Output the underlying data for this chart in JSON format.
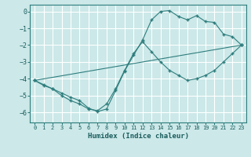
{
  "xlabel": "Humidex (Indice chaleur)",
  "background_color": "#cce8e8",
  "grid_color": "#b8d8d8",
  "line_color": "#2e7d7d",
  "xlim": [
    -0.5,
    23.5
  ],
  "ylim": [
    -6.6,
    0.4
  ],
  "xticks": [
    0,
    1,
    2,
    3,
    4,
    5,
    6,
    7,
    8,
    9,
    10,
    11,
    12,
    13,
    14,
    15,
    16,
    17,
    18,
    19,
    20,
    21,
    22,
    23
  ],
  "yticks": [
    0,
    -1,
    -2,
    -3,
    -4,
    -5,
    -6
  ],
  "line1_x": [
    0,
    1,
    2,
    3,
    4,
    5,
    6,
    7,
    8,
    9,
    10,
    11,
    12,
    13,
    14,
    15,
    16,
    17,
    18,
    19,
    20,
    21,
    22,
    23
  ],
  "line1_y": [
    -4.1,
    -4.35,
    -4.6,
    -4.85,
    -5.1,
    -5.3,
    -5.75,
    -5.95,
    -5.8,
    -4.7,
    -3.55,
    -2.6,
    -1.7,
    -0.5,
    0.0,
    0.05,
    -0.3,
    -0.5,
    -0.25,
    -0.6,
    -0.65,
    -1.35,
    -1.5,
    -2.0
  ],
  "line2_x": [
    0,
    1,
    2,
    3,
    4,
    5,
    6,
    7,
    8,
    9,
    10,
    11,
    12,
    13,
    14,
    15,
    16,
    17,
    18,
    19,
    20,
    21,
    22,
    23
  ],
  "line2_y": [
    -4.1,
    -4.4,
    -4.6,
    -5.0,
    -5.3,
    -5.5,
    -5.8,
    -5.9,
    -5.5,
    -4.6,
    -3.5,
    -2.5,
    -1.8,
    -2.4,
    -3.0,
    -3.5,
    -3.8,
    -4.1,
    -4.0,
    -3.8,
    -3.5,
    -3.0,
    -2.5,
    -2.0
  ],
  "line3_x": [
    0,
    23
  ],
  "line3_y": [
    -4.1,
    -2.0
  ]
}
